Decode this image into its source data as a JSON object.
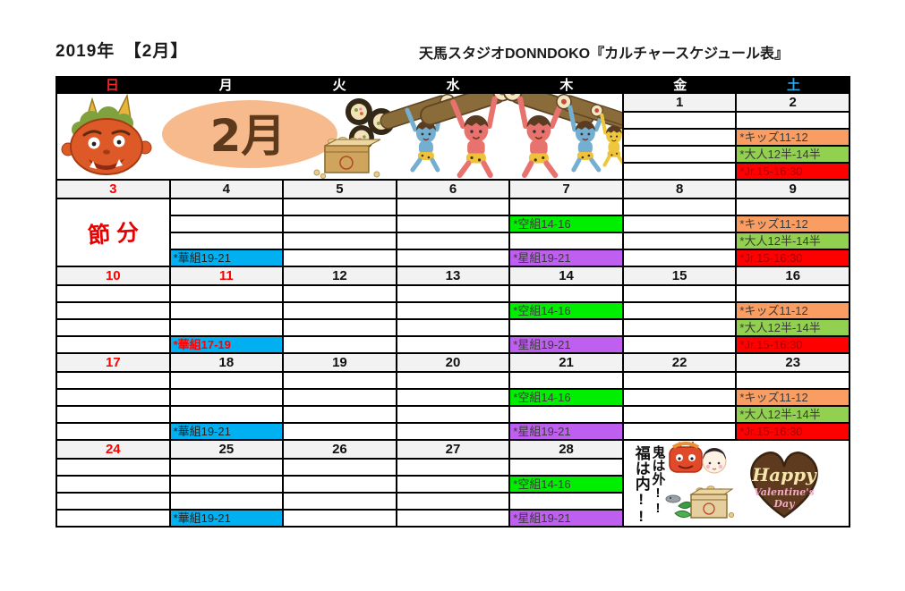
{
  "title": {
    "left": "2019年　【2月】",
    "right": "天馬スタジオDONNDOKO『カルチャースケジュール表』"
  },
  "weekday_header": [
    {
      "label": "日",
      "en": "sun",
      "color": "#ff2222"
    },
    {
      "label": "月",
      "en": "mon",
      "color": "#ffffff"
    },
    {
      "label": "火",
      "en": "tue",
      "color": "#ffffff"
    },
    {
      "label": "水",
      "en": "wed",
      "color": "#ffffff"
    },
    {
      "label": "木",
      "en": "thu",
      "color": "#ffffff"
    },
    {
      "label": "金",
      "en": "fri",
      "color": "#ffffff"
    },
    {
      "label": "土",
      "en": "sat",
      "color": "#2aa7e8"
    }
  ],
  "colors": {
    "header_bg": "#000000",
    "holiday_red": "#ff0000",
    "date_row_bg": "#f2f2f2",
    "grid_border": "#000000"
  },
  "class_defs": {
    "kids": {
      "label": "*キッズ11-12",
      "bg": "#f99d62",
      "color": "#3a3a3a"
    },
    "otona": {
      "label": "*大人12半-14半",
      "bg": "#92d050",
      "color": "#3a3a3a"
    },
    "jr": {
      "label": "*Jr.15-16:30",
      "bg": "#ff0000",
      "color": "#a90000"
    },
    "sora": {
      "label": "*空組14-16",
      "bg": "#00ef00",
      "color": "#3a3a3a"
    },
    "hoshi": {
      "label": "*星組19-21",
      "bg": "#bf5ff0",
      "color": "#3a3a3a"
    },
    "hana19": {
      "label": "*華組19-21",
      "bg": "#00b0f0",
      "color": "#222222"
    },
    "hana17": {
      "label": "*華組17-19",
      "bg": "#00b0f0",
      "color": "#ff0000",
      "bold": true
    }
  },
  "setsubun_label": "節分",
  "banner": {
    "month_label": "2月"
  },
  "valentine": {
    "phrase_left": "福は内!!",
    "phrase_right": "鬼は外!!",
    "heart_line1": "Happy",
    "heart_line2": "Valentine's",
    "heart_line3": "Day"
  },
  "weeks": [
    {
      "merges": [
        {
          "type": "banner",
          "col": 1,
          "colspan": 5,
          "row": 1,
          "rowspan": 5
        }
      ],
      "days": [
        {
          "col": 6,
          "date": "1",
          "rows": [
            null,
            null,
            null,
            null
          ]
        },
        {
          "col": 7,
          "date": "2",
          "rows": [
            null,
            "kids",
            "otona",
            "jr"
          ]
        }
      ]
    },
    {
      "merges": [
        {
          "type": "setsubun",
          "col": 1,
          "colspan": 1,
          "row": 2,
          "rowspan": 4
        }
      ],
      "days": [
        {
          "col": 1,
          "date": "3",
          "red": true,
          "rows": []
        },
        {
          "col": 2,
          "date": "4",
          "rows": [
            null,
            null,
            null,
            "hana19"
          ]
        },
        {
          "col": 3,
          "date": "5",
          "rows": [
            null,
            null,
            null,
            null
          ]
        },
        {
          "col": 4,
          "date": "6",
          "rows": [
            null,
            null,
            null,
            null
          ]
        },
        {
          "col": 5,
          "date": "7",
          "rows": [
            null,
            "sora",
            null,
            "hoshi"
          ]
        },
        {
          "col": 6,
          "date": "8",
          "rows": [
            null,
            null,
            null,
            null
          ]
        },
        {
          "col": 7,
          "date": "9",
          "rows": [
            null,
            "kids",
            "otona",
            "jr"
          ]
        }
      ]
    },
    {
      "merges": [],
      "days": [
        {
          "col": 1,
          "date": "10",
          "red": true,
          "rows": [
            null,
            null,
            null,
            null
          ]
        },
        {
          "col": 2,
          "date": "11",
          "red": true,
          "rows": [
            null,
            null,
            null,
            "hana17"
          ]
        },
        {
          "col": 3,
          "date": "12",
          "rows": [
            null,
            null,
            null,
            null
          ]
        },
        {
          "col": 4,
          "date": "13",
          "rows": [
            null,
            null,
            null,
            null
          ]
        },
        {
          "col": 5,
          "date": "14",
          "rows": [
            null,
            "sora",
            null,
            "hoshi"
          ]
        },
        {
          "col": 6,
          "date": "15",
          "rows": [
            null,
            null,
            null,
            null
          ]
        },
        {
          "col": 7,
          "date": "16",
          "rows": [
            null,
            "kids",
            "otona",
            "jr"
          ]
        }
      ]
    },
    {
      "merges": [],
      "days": [
        {
          "col": 1,
          "date": "17",
          "red": true,
          "rows": [
            null,
            null,
            null,
            null
          ]
        },
        {
          "col": 2,
          "date": "18",
          "rows": [
            null,
            null,
            null,
            "hana19"
          ]
        },
        {
          "col": 3,
          "date": "19",
          "rows": [
            null,
            null,
            null,
            null
          ]
        },
        {
          "col": 4,
          "date": "20",
          "rows": [
            null,
            null,
            null,
            null
          ]
        },
        {
          "col": 5,
          "date": "21",
          "rows": [
            null,
            "sora",
            null,
            "hoshi"
          ]
        },
        {
          "col": 6,
          "date": "22",
          "rows": [
            null,
            null,
            null,
            null
          ]
        },
        {
          "col": 7,
          "date": "23",
          "rows": [
            null,
            "kids",
            "otona",
            "jr"
          ]
        }
      ]
    },
    {
      "merges": [
        {
          "type": "valentine",
          "col": 6,
          "colspan": 2,
          "row": 1,
          "rowspan": 5
        }
      ],
      "days": [
        {
          "col": 1,
          "date": "24",
          "red": true,
          "rows": [
            null,
            null,
            null,
            null
          ]
        },
        {
          "col": 2,
          "date": "25",
          "rows": [
            null,
            null,
            null,
            "hana19"
          ]
        },
        {
          "col": 3,
          "date": "26",
          "rows": [
            null,
            null,
            null,
            null
          ]
        },
        {
          "col": 4,
          "date": "27",
          "rows": [
            null,
            null,
            null,
            null
          ]
        },
        {
          "col": 5,
          "date": "28",
          "rows": [
            null,
            "sora",
            null,
            "hoshi"
          ]
        }
      ]
    }
  ]
}
